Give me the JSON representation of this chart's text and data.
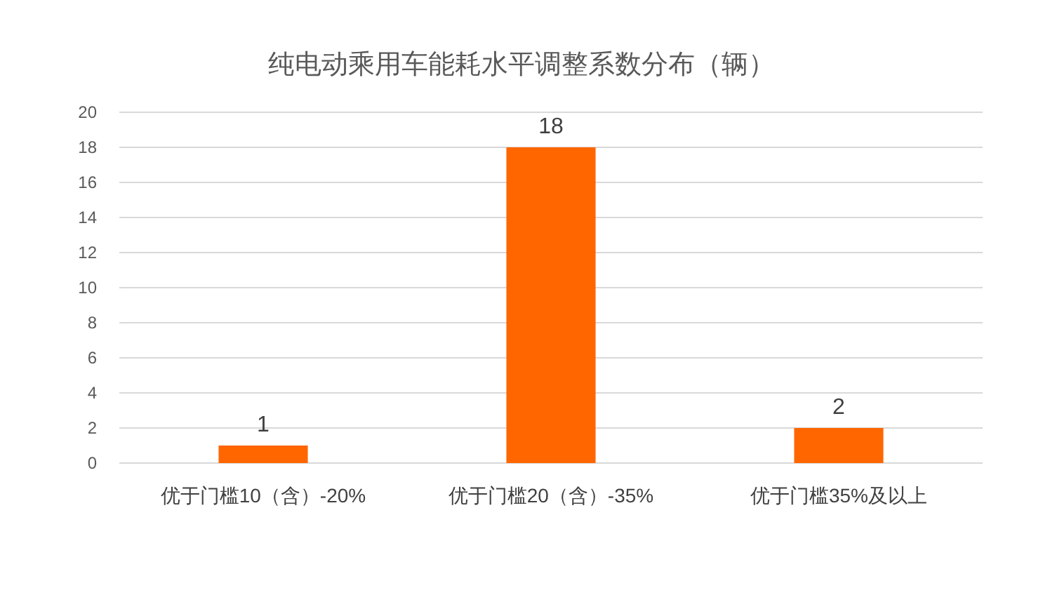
{
  "chart_data": {
    "type": "bar",
    "title": "纯电动乘用车能耗水平调整系数分布（辆）",
    "categories": [
      "优于门槛10（含）-20%",
      "优于门槛20（含）-35%",
      "优于门槛35%及以上"
    ],
    "values": [
      1,
      18,
      2
    ],
    "color": "#ff6600",
    "ylim": [
      0,
      20
    ],
    "yticks": [
      0,
      2,
      4,
      6,
      8,
      10,
      12,
      14,
      16,
      18,
      20
    ],
    "grid": "y",
    "data_labels": true
  }
}
